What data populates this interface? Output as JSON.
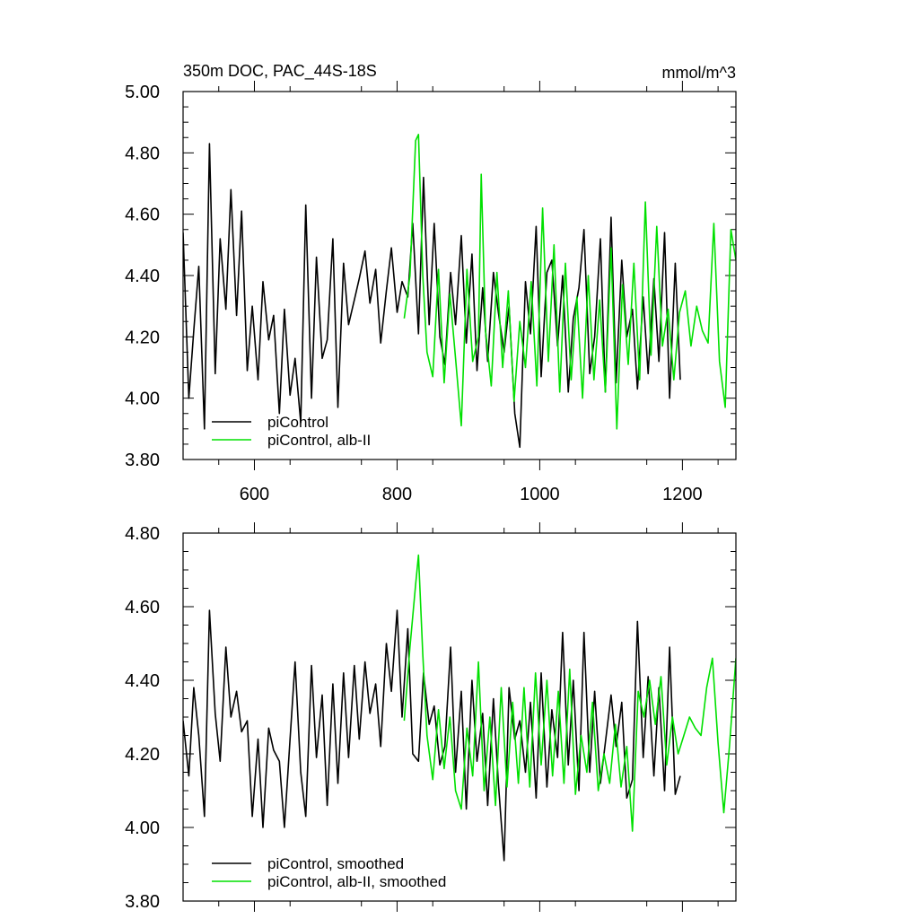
{
  "chart_data": [
    {
      "type": "line",
      "title_left": "350m DOC, PAC_44S-18S",
      "title_right": "mmol/m^3",
      "xlim": [
        500,
        1275
      ],
      "ylim": [
        3.8,
        5.0
      ],
      "xticks": [
        600,
        800,
        1000,
        1200
      ],
      "xtick_labels": [
        "600",
        "800",
        "1000",
        "1200"
      ],
      "yticks": [
        3.8,
        4.0,
        4.2,
        4.4,
        4.6,
        4.8,
        5.0
      ],
      "ytick_labels": [
        "3.80",
        "4.00",
        "4.20",
        "4.40",
        "4.60",
        "4.80",
        "5.00"
      ],
      "legend": {
        "position": "bottom-left"
      },
      "series": [
        {
          "name": "piControl",
          "color": "#000000",
          "x": [
            500,
            508,
            515,
            522,
            530,
            537,
            545,
            552,
            560,
            567,
            575,
            582,
            590,
            597,
            605,
            612,
            620,
            627,
            635,
            642,
            650,
            657,
            665,
            672,
            680,
            687,
            695,
            702,
            710,
            717,
            725,
            732,
            740,
            747,
            755,
            762,
            770,
            777,
            785,
            792,
            800,
            807,
            815,
            822,
            830,
            837,
            845,
            852,
            860,
            867,
            875,
            882,
            890,
            897,
            905,
            912,
            920,
            927,
            935,
            942,
            950,
            957,
            965,
            972,
            980,
            987,
            995,
            1002,
            1010,
            1017,
            1025,
            1032,
            1040,
            1047,
            1055,
            1062,
            1070,
            1077,
            1085,
            1092,
            1100,
            1107,
            1115,
            1122,
            1130,
            1137,
            1145,
            1152,
            1160,
            1167,
            1175,
            1182,
            1190,
            1197
          ],
          "values": [
            4.54,
            4.0,
            4.22,
            4.43,
            3.9,
            4.83,
            4.08,
            4.52,
            4.29,
            4.68,
            4.27,
            4.61,
            4.09,
            4.3,
            4.06,
            4.38,
            4.19,
            4.27,
            3.95,
            4.29,
            4.01,
            4.13,
            3.92,
            4.63,
            4.0,
            4.46,
            4.13,
            4.19,
            4.52,
            3.97,
            4.44,
            4.24,
            4.32,
            4.39,
            4.48,
            4.31,
            4.42,
            4.18,
            4.35,
            4.49,
            4.28,
            4.38,
            4.33,
            4.57,
            4.21,
            4.72,
            4.24,
            4.57,
            4.2,
            4.11,
            4.41,
            4.24,
            4.53,
            4.18,
            4.47,
            4.09,
            4.36,
            4.12,
            4.41,
            4.28,
            4.15,
            4.3,
            3.95,
            3.84,
            4.38,
            4.21,
            4.56,
            4.07,
            4.41,
            4.45,
            4.17,
            4.4,
            4.02,
            4.26,
            4.36,
            4.55,
            4.08,
            4.2,
            4.52,
            4.02,
            4.59,
            4.05,
            4.45,
            4.2,
            4.29,
            4.03,
            4.33,
            4.08,
            4.39,
            4.12,
            4.54,
            4.0,
            4.44,
            4.06
          ]
        },
        {
          "name": "piControl, alb-II",
          "color": "#00e000",
          "x": [
            810,
            818,
            826,
            830,
            836,
            842,
            850,
            858,
            866,
            874,
            882,
            890,
            898,
            906,
            914,
            918,
            924,
            932,
            940,
            948,
            956,
            964,
            972,
            980,
            988,
            996,
            1004,
            1012,
            1020,
            1028,
            1036,
            1044,
            1052,
            1060,
            1068,
            1076,
            1084,
            1092,
            1100,
            1108,
            1116,
            1124,
            1132,
            1140,
            1148,
            1156,
            1164,
            1172,
            1180,
            1188,
            1196,
            1204,
            1212,
            1220,
            1228,
            1236,
            1244,
            1252,
            1260,
            1268,
            1275
          ],
          "values": [
            4.26,
            4.4,
            4.84,
            4.86,
            4.4,
            4.15,
            4.07,
            4.42,
            4.05,
            4.34,
            4.13,
            3.91,
            4.42,
            4.12,
            4.2,
            4.73,
            4.22,
            4.04,
            4.41,
            4.1,
            4.35,
            3.99,
            4.25,
            4.1,
            4.38,
            4.04,
            4.62,
            4.12,
            4.5,
            4.02,
            4.44,
            4.06,
            4.33,
            4.0,
            4.4,
            4.06,
            4.32,
            4.02,
            4.49,
            3.9,
            4.37,
            4.11,
            4.44,
            4.06,
            4.64,
            4.14,
            4.56,
            4.17,
            4.29,
            4.06,
            4.28,
            4.35,
            4.17,
            4.3,
            4.22,
            4.18,
            4.57,
            4.12,
            3.97,
            4.55,
            4.45
          ]
        }
      ]
    },
    {
      "type": "line",
      "xlim": [
        500,
        1275
      ],
      "ylim": [
        3.8,
        4.8
      ],
      "xticks": [
        600,
        800,
        1000,
        1200
      ],
      "yticks": [
        3.8,
        4.0,
        4.2,
        4.4,
        4.6,
        4.8
      ],
      "ytick_labels": [
        "3.80",
        "4.00",
        "4.20",
        "4.40",
        "4.60",
        "4.80"
      ],
      "legend": {
        "position": "bottom-left"
      },
      "series": [
        {
          "name": "piControl, smoothed",
          "color": "#000000",
          "x": [
            500,
            508,
            515,
            522,
            530,
            537,
            545,
            552,
            560,
            567,
            575,
            582,
            590,
            597,
            605,
            612,
            620,
            627,
            635,
            642,
            650,
            657,
            665,
            672,
            680,
            687,
            695,
            702,
            710,
            717,
            725,
            732,
            740,
            747,
            755,
            762,
            770,
            777,
            785,
            792,
            800,
            807,
            815,
            822,
            830,
            837,
            845,
            852,
            860,
            867,
            875,
            882,
            890,
            897,
            905,
            912,
            920,
            927,
            935,
            942,
            950,
            957,
            965,
            972,
            980,
            987,
            995,
            1002,
            1010,
            1017,
            1025,
            1032,
            1040,
            1047,
            1055,
            1062,
            1070,
            1077,
            1085,
            1092,
            1100,
            1107,
            1115,
            1122,
            1130,
            1137,
            1145,
            1152,
            1160,
            1167,
            1175,
            1182,
            1190,
            1197
          ],
          "values": [
            4.29,
            4.14,
            4.38,
            4.25,
            4.03,
            4.59,
            4.31,
            4.18,
            4.49,
            4.3,
            4.37,
            4.26,
            4.29,
            4.03,
            4.24,
            4.0,
            4.27,
            4.21,
            4.18,
            4.0,
            4.24,
            4.45,
            4.15,
            4.03,
            4.44,
            4.19,
            4.36,
            4.06,
            4.39,
            4.12,
            4.42,
            4.19,
            4.44,
            4.24,
            4.45,
            4.31,
            4.39,
            4.22,
            4.5,
            4.37,
            4.59,
            4.3,
            4.54,
            4.2,
            4.18,
            4.42,
            4.28,
            4.33,
            4.17,
            4.22,
            4.49,
            4.15,
            4.37,
            4.05,
            4.4,
            4.18,
            4.31,
            4.06,
            4.35,
            4.12,
            3.91,
            4.38,
            4.24,
            4.29,
            4.15,
            4.34,
            4.08,
            4.42,
            4.11,
            4.32,
            4.19,
            4.53,
            4.17,
            4.4,
            4.1,
            4.53,
            4.15,
            4.37,
            4.12,
            4.23,
            4.36,
            4.22,
            4.34,
            4.08,
            4.13,
            4.56,
            4.19,
            4.41,
            4.14,
            4.38,
            4.1,
            4.49,
            4.09,
            4.14
          ]
        },
        {
          "name": "piControl, alb-II, smoothed",
          "color": "#00e000",
          "x": [
            810,
            818,
            826,
            830,
            836,
            842,
            850,
            858,
            866,
            874,
            882,
            890,
            898,
            906,
            914,
            922,
            930,
            938,
            946,
            954,
            962,
            970,
            978,
            986,
            994,
            1002,
            1010,
            1018,
            1026,
            1034,
            1042,
            1050,
            1058,
            1066,
            1074,
            1082,
            1090,
            1098,
            1106,
            1114,
            1122,
            1130,
            1138,
            1146,
            1154,
            1162,
            1170,
            1178,
            1186,
            1194,
            1202,
            1210,
            1218,
            1226,
            1234,
            1242,
            1250,
            1258,
            1266,
            1275
          ],
          "values": [
            4.29,
            4.49,
            4.66,
            4.74,
            4.47,
            4.25,
            4.13,
            4.32,
            4.16,
            4.3,
            4.1,
            4.05,
            4.27,
            4.14,
            4.45,
            4.1,
            4.3,
            4.06,
            4.38,
            4.11,
            4.34,
            4.12,
            4.38,
            4.11,
            4.42,
            4.17,
            4.4,
            4.14,
            4.37,
            4.12,
            4.43,
            4.09,
            4.25,
            4.15,
            4.34,
            4.1,
            4.2,
            4.12,
            4.28,
            4.11,
            4.22,
            3.99,
            4.37,
            4.3,
            4.4,
            4.28,
            4.41,
            4.17,
            4.3,
            4.2,
            4.25,
            4.3,
            4.27,
            4.25,
            4.38,
            4.46,
            4.23,
            4.04,
            4.22,
            4.46
          ]
        }
      ]
    }
  ]
}
